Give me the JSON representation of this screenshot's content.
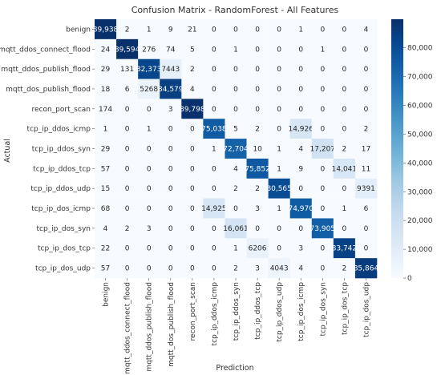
{
  "chart_data": {
    "type": "heatmap",
    "title": "Confusion Matrix - RandomForest - All Features",
    "xlabel": "Prediction",
    "ylabel": "Actual",
    "row_labels": [
      "benign",
      "mqtt_ddos_connect_flood",
      "mqtt_ddos_publish_flood",
      "mqtt_dos_publish_flood",
      "recon_port_scan",
      "tcp_ip_ddos_icmp",
      "tcp_ip_ddos_syn",
      "tcp_ip_ddos_tcp",
      "tcp_ip_ddos_udp",
      "tcp_ip_dos_icmp",
      "tcp_ip_dos_syn",
      "tcp_ip_dos_tcp",
      "tcp_ip_dos_udp"
    ],
    "col_labels": [
      "benign",
      "mqtt_ddos_connect_flood",
      "mqtt_ddos_publish_flood",
      "mqtt_dos_publish_flood",
      "recon_port_scan",
      "tcp_ip_ddos_icmp",
      "tcp_ip_ddos_syn",
      "tcp_ip_ddos_tcp",
      "tcp_ip_ddos_udp",
      "tcp_ip_dos_icmp",
      "tcp_ip_dos_syn",
      "tcp_ip_dos_tcp",
      "tcp_ip_dos_udp"
    ],
    "values": [
      [
        89938,
        2,
        1,
        9,
        21,
        0,
        0,
        0,
        0,
        1,
        0,
        0,
        4
      ],
      [
        24,
        89594,
        276,
        74,
        5,
        0,
        1,
        0,
        0,
        0,
        1,
        0,
        0
      ],
      [
        29,
        131,
        82373,
        7443,
        2,
        0,
        0,
        0,
        0,
        0,
        0,
        0,
        0
      ],
      [
        18,
        6,
        5268,
        84579,
        4,
        0,
        0,
        0,
        0,
        0,
        0,
        0,
        0
      ],
      [
        174,
        0,
        0,
        3,
        89798,
        0,
        0,
        0,
        0,
        0,
        0,
        0,
        0
      ],
      [
        1,
        0,
        1,
        0,
        0,
        75038,
        5,
        2,
        0,
        14926,
        0,
        0,
        2
      ],
      [
        29,
        0,
        0,
        0,
        0,
        1,
        72704,
        10,
        1,
        4,
        17207,
        2,
        17
      ],
      [
        57,
        0,
        0,
        0,
        0,
        0,
        4,
        75852,
        1,
        9,
        0,
        14041,
        11
      ],
      [
        15,
        0,
        0,
        0,
        0,
        0,
        2,
        2,
        80565,
        0,
        0,
        0,
        9391
      ],
      [
        68,
        0,
        0,
        0,
        0,
        14925,
        0,
        3,
        1,
        74970,
        0,
        1,
        6
      ],
      [
        4,
        2,
        3,
        0,
        0,
        0,
        16061,
        0,
        0,
        0,
        73905,
        0,
        0
      ],
      [
        22,
        0,
        0,
        0,
        0,
        0,
        1,
        6206,
        0,
        3,
        0,
        83742,
        0
      ],
      [
        57,
        0,
        0,
        0,
        0,
        0,
        2,
        3,
        4043,
        4,
        0,
        2,
        85864
      ]
    ],
    "display_values": [
      [
        "89,938",
        "2",
        "1",
        "9",
        "21",
        "0",
        "0",
        "0",
        "0",
        "1",
        "0",
        "0",
        "4"
      ],
      [
        "24",
        "89,594",
        "276",
        "74",
        "5",
        "0",
        "1",
        "0",
        "0",
        "0",
        "1",
        "0",
        "0"
      ],
      [
        "29",
        "131",
        "82,373",
        "7443",
        "2",
        "0",
        "0",
        "0",
        "0",
        "0",
        "0",
        "0",
        "0"
      ],
      [
        "18",
        "6",
        "5268",
        "84,579",
        "4",
        "0",
        "0",
        "0",
        "0",
        "0",
        "0",
        "0",
        "0"
      ],
      [
        "174",
        "0",
        "0",
        "3",
        "89,798",
        "0",
        "0",
        "0",
        "0",
        "0",
        "0",
        "0",
        "0"
      ],
      [
        "1",
        "0",
        "1",
        "0",
        "0",
        "75,038",
        "5",
        "2",
        "0",
        "14,926",
        "0",
        "0",
        "2"
      ],
      [
        "29",
        "0",
        "0",
        "0",
        "0",
        "1",
        "72,704",
        "10",
        "1",
        "4",
        "17,207",
        "2",
        "17"
      ],
      [
        "57",
        "0",
        "0",
        "0",
        "0",
        "0",
        "4",
        "75,852",
        "1",
        "9",
        "0",
        "14,041",
        "11"
      ],
      [
        "15",
        "0",
        "0",
        "0",
        "0",
        "0",
        "2",
        "2",
        "80,565",
        "0",
        "0",
        "0",
        "9391"
      ],
      [
        "68",
        "0",
        "0",
        "0",
        "0",
        "14,925",
        "0",
        "3",
        "1",
        "74,970",
        "0",
        "1",
        "6"
      ],
      [
        "4",
        "2",
        "3",
        "0",
        "0",
        "0",
        "16,061",
        "0",
        "0",
        "0",
        "73,905",
        "0",
        "0"
      ],
      [
        "22",
        "0",
        "0",
        "0",
        "0",
        "0",
        "1",
        "6206",
        "0",
        "3",
        "0",
        "83,742",
        "0"
      ],
      [
        "57",
        "0",
        "0",
        "0",
        "0",
        "0",
        "2",
        "3",
        "4043",
        "4",
        "0",
        "2",
        "85,864"
      ]
    ],
    "vmin": 0,
    "vmax": 89938,
    "colormap": "Blues",
    "colors": {
      "low": "#f7fbff",
      "high": "#08306b"
    },
    "colorbar_ticks": [
      0,
      10000,
      20000,
      30000,
      40000,
      50000,
      60000,
      70000,
      80000
    ],
    "colorbar_tick_labels": [
      "0",
      "10,000",
      "20,000",
      "30,000",
      "40,000",
      "50,000",
      "60,000",
      "70,000",
      "80,000"
    ],
    "annotation_colors": {
      "dark": "#262626",
      "light": "#ffffff"
    }
  }
}
